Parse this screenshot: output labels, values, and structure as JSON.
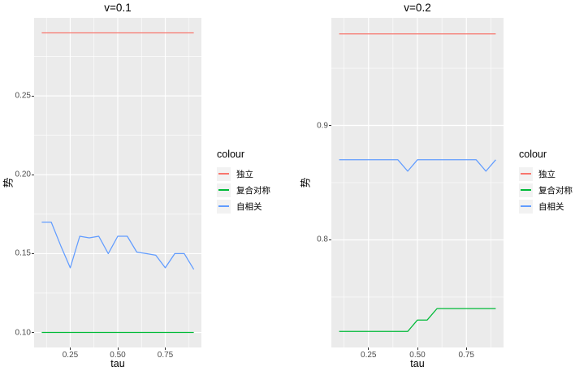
{
  "palette": {
    "background": "#FFFFFF",
    "panel_background": "#EBEBEB",
    "gridline": "#FFFFFF",
    "tick_label": "#4D4D4D",
    "tick_mark": "#333333",
    "text": "#000000",
    "legend_key_background": "#F2F2F2",
    "red": "#F8766D",
    "green": "#00BA38",
    "blue": "#619CFF"
  },
  "chart_data": [
    {
      "type": "line",
      "title": "v=0.1",
      "xlabel": "tau",
      "ylabel": "势",
      "legend_title": "colour",
      "legend_position": "right",
      "grid": true,
      "xlim": [
        0.06,
        0.94
      ],
      "ylim": [
        0.0905,
        0.2995
      ],
      "x_ticks": [
        "0.25",
        "0.50",
        "0.75"
      ],
      "x_tick_values": [
        0.25,
        0.5,
        0.75
      ],
      "y_ticks": [
        "0.10",
        "0.15",
        "0.20",
        "0.25"
      ],
      "y_tick_values": [
        0.1,
        0.15,
        0.2,
        0.25
      ],
      "x": [
        0.1,
        0.15,
        0.2,
        0.25,
        0.3,
        0.35,
        0.4,
        0.45,
        0.5,
        0.55,
        0.6,
        0.65,
        0.7,
        0.75,
        0.8,
        0.85,
        0.9
      ],
      "series": [
        {
          "name": "独立",
          "color": "#F8766D",
          "values": [
            0.29,
            0.29,
            0.29,
            0.29,
            0.29,
            0.29,
            0.29,
            0.29,
            0.29,
            0.29,
            0.29,
            0.29,
            0.29,
            0.29,
            0.29,
            0.29,
            0.29
          ]
        },
        {
          "name": "复合对称",
          "color": "#00BA38",
          "values": [
            0.1,
            0.1,
            0.1,
            0.1,
            0.1,
            0.1,
            0.1,
            0.1,
            0.1,
            0.1,
            0.1,
            0.1,
            0.1,
            0.1,
            0.1,
            0.1,
            0.1
          ]
        },
        {
          "name": "自相关",
          "color": "#619CFF",
          "values": [
            0.17,
            0.17,
            0.155,
            0.141,
            0.161,
            0.16,
            0.161,
            0.15,
            0.161,
            0.161,
            0.151,
            0.15,
            0.149,
            0.141,
            0.15,
            0.15,
            0.14
          ]
        }
      ]
    },
    {
      "type": "line",
      "title": "v=0.2",
      "xlabel": "tau",
      "ylabel": "势",
      "legend_title": "colour",
      "legend_position": "right",
      "grid": true,
      "xlim": [
        0.06,
        0.94
      ],
      "ylim": [
        0.706,
        0.994
      ],
      "x_ticks": [
        "0.25",
        "0.50",
        "0.75"
      ],
      "x_tick_values": [
        0.25,
        0.5,
        0.75
      ],
      "y_ticks": [
        "0.8",
        "0.9"
      ],
      "y_tick_values": [
        0.8,
        0.9
      ],
      "x": [
        0.1,
        0.15,
        0.2,
        0.25,
        0.3,
        0.35,
        0.4,
        0.45,
        0.5,
        0.55,
        0.6,
        0.65,
        0.7,
        0.75,
        0.8,
        0.85,
        0.9
      ],
      "series": [
        {
          "name": "独立",
          "color": "#F8766D",
          "values": [
            0.98,
            0.98,
            0.98,
            0.98,
            0.98,
            0.98,
            0.98,
            0.98,
            0.98,
            0.98,
            0.98,
            0.98,
            0.98,
            0.98,
            0.98,
            0.98,
            0.98
          ]
        },
        {
          "name": "复合对称",
          "color": "#00BA38",
          "values": [
            0.72,
            0.72,
            0.72,
            0.72,
            0.72,
            0.72,
            0.72,
            0.72,
            0.73,
            0.73,
            0.74,
            0.74,
            0.74,
            0.74,
            0.74,
            0.74,
            0.74
          ]
        },
        {
          "name": "自相关",
          "color": "#619CFF",
          "values": [
            0.87,
            0.87,
            0.87,
            0.87,
            0.87,
            0.87,
            0.87,
            0.86,
            0.87,
            0.87,
            0.87,
            0.87,
            0.87,
            0.87,
            0.87,
            0.86,
            0.87
          ]
        }
      ]
    }
  ]
}
